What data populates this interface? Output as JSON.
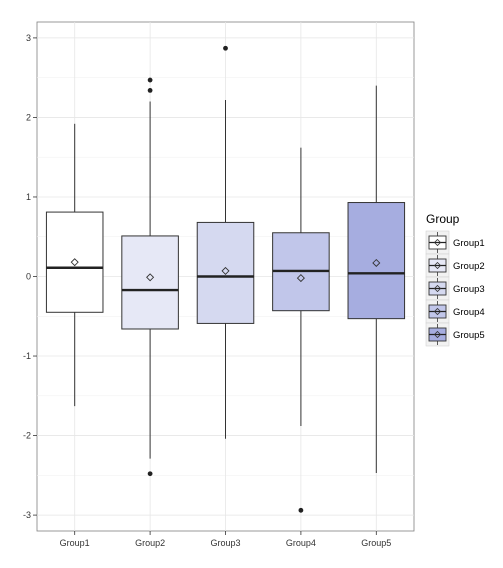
{
  "chart_data": {
    "type": "boxplot",
    "title": "",
    "xlabel": "",
    "ylabel": "",
    "ylim": [
      -3.2,
      3.2
    ],
    "yticks": [
      -3,
      -2,
      -1,
      0,
      1,
      2,
      3
    ],
    "grid": true,
    "legend": {
      "title": "Group",
      "placement": "right"
    },
    "categories": [
      "Group1",
      "Group2",
      "Group3",
      "Group4",
      "Group5"
    ],
    "fills": [
      "#ffffff",
      "#e6e8f6",
      "#d5d9f0",
      "#c1c6ea",
      "#a6ade0"
    ],
    "groups": [
      {
        "name": "Group1",
        "q1": -0.45,
        "median": 0.11,
        "q3": 0.81,
        "whisker_low": -1.63,
        "whisker_high": 1.92,
        "mean": 0.18,
        "outliers": []
      },
      {
        "name": "Group2",
        "q1": -0.66,
        "median": -0.17,
        "q3": 0.51,
        "whisker_low": -2.29,
        "whisker_high": 2.2,
        "mean": -0.01,
        "outliers": [
          2.47,
          2.34,
          -2.48
        ]
      },
      {
        "name": "Group3",
        "q1": -0.59,
        "median": 0.0,
        "q3": 0.68,
        "whisker_low": -2.04,
        "whisker_high": 2.22,
        "mean": 0.07,
        "outliers": [
          2.87
        ]
      },
      {
        "name": "Group4",
        "q1": -0.43,
        "median": 0.07,
        "q3": 0.55,
        "whisker_low": -1.88,
        "whisker_high": 1.62,
        "mean": -0.02,
        "outliers": [
          -2.94
        ]
      },
      {
        "name": "Group5",
        "q1": -0.53,
        "median": 0.04,
        "q3": 0.93,
        "whisker_low": -2.47,
        "whisker_high": 2.4,
        "mean": 0.17,
        "outliers": []
      }
    ]
  }
}
